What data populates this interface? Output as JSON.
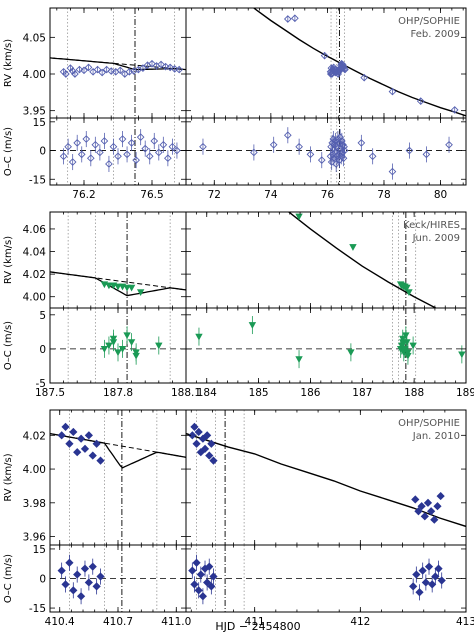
{
  "chart_data": {
    "type": "scatter",
    "xlabel": "HJD − 2454800",
    "rv_label": "RV (km/s)",
    "oc_label": "O–C (m/s)",
    "panels": [
      {
        "id": "p1",
        "instrument": "OHP/SOPHIE",
        "date": "Feb. 2009",
        "color": "#5560b0",
        "marker": "open-diamond",
        "left": {
          "xlim": [
            76.05,
            76.65
          ],
          "xticks": [
            "76.2",
            "76.5"
          ]
        },
        "right": {
          "xlim": [
            71.0,
            80.9
          ],
          "xticks": [
            "72",
            "74",
            "76",
            "78",
            "80"
          ]
        },
        "rv_ylim": [
          3.94,
          4.09
        ],
        "rv_yticks": [
          "3.95",
          "4.00",
          "4.05"
        ],
        "oc_ylim": [
          -18,
          17
        ],
        "oc_yticks": [
          "15",
          "0",
          "-15"
        ],
        "rv_points": [
          [
            76.11,
            4.003
          ],
          [
            76.12,
            4.0
          ],
          [
            76.14,
            4.008
          ],
          [
            76.15,
            4.004
          ],
          [
            76.16,
            4.0
          ],
          [
            76.18,
            4.006
          ],
          [
            76.2,
            4.005
          ],
          [
            76.22,
            4.009
          ],
          [
            76.24,
            4.003
          ],
          [
            76.26,
            4.006
          ],
          [
            76.28,
            4.002
          ],
          [
            76.3,
            4.006
          ],
          [
            76.32,
            4.004
          ],
          [
            76.34,
            4.003
          ],
          [
            76.36,
            4.005
          ],
          [
            76.38,
            4.0
          ],
          [
            76.4,
            4.003
          ],
          [
            76.42,
            4.004
          ],
          [
            76.44,
            4.006
          ],
          [
            76.46,
            4.008
          ],
          [
            76.48,
            4.012
          ],
          [
            76.5,
            4.014
          ],
          [
            76.52,
            4.011
          ],
          [
            76.54,
            4.013
          ],
          [
            76.56,
            4.01
          ],
          [
            76.58,
            4.009
          ],
          [
            76.6,
            4.007
          ],
          [
            76.62,
            4.006
          ],
          [
            74.6,
            4.075
          ],
          [
            74.85,
            4.076
          ],
          [
            75.9,
            4.025
          ],
          [
            77.3,
            3.995
          ],
          [
            78.3,
            3.976
          ],
          [
            79.3,
            3.963
          ],
          [
            80.5,
            3.951
          ]
        ],
        "oc_points": [
          [
            76.11,
            -3
          ],
          [
            76.13,
            2
          ],
          [
            76.15,
            -6
          ],
          [
            76.17,
            4
          ],
          [
            76.19,
            -2
          ],
          [
            76.21,
            6
          ],
          [
            76.23,
            -4
          ],
          [
            76.25,
            3
          ],
          [
            76.27,
            -1
          ],
          [
            76.29,
            5
          ],
          [
            76.31,
            -7
          ],
          [
            76.33,
            2
          ],
          [
            76.35,
            -3
          ],
          [
            76.37,
            6
          ],
          [
            76.39,
            -2
          ],
          [
            76.41,
            4
          ],
          [
            76.43,
            -5
          ],
          [
            76.45,
            7
          ],
          [
            76.47,
            1
          ],
          [
            76.49,
            -3
          ],
          [
            76.51,
            5
          ],
          [
            76.53,
            -1
          ],
          [
            76.55,
            3
          ],
          [
            76.57,
            -4
          ],
          [
            76.59,
            2
          ],
          [
            76.61,
            0
          ],
          [
            71.6,
            2
          ],
          [
            73.4,
            -1
          ],
          [
            74.1,
            3
          ],
          [
            74.6,
            8
          ],
          [
            75.0,
            2
          ],
          [
            75.4,
            -2
          ],
          [
            75.8,
            -5
          ],
          [
            77.2,
            4
          ],
          [
            77.6,
            -3
          ],
          [
            78.3,
            -11
          ],
          [
            78.9,
            0
          ],
          [
            79.5,
            -2
          ],
          [
            80.3,
            3
          ]
        ],
        "model_x": [
          71,
          71.5,
          72,
          72.5,
          73,
          73.5,
          74,
          74.5,
          75,
          75.5,
          76,
          76.2,
          76.4,
          76.6,
          77,
          77.5,
          78,
          78.5,
          79,
          79.5,
          80,
          80.5,
          80.9
        ],
        "model_y": [
          4.171,
          4.153,
          4.135,
          4.118,
          4.102,
          4.087,
          4.073,
          4.06,
          4.047,
          4.035,
          4.024,
          4.02,
          4.016,
          4.012,
          4.004,
          3.994,
          3.985,
          3.976,
          3.968,
          3.961,
          3.954,
          3.948,
          3.943
        ],
        "transit_x": [
          76.128,
          76.33,
          76.425,
          76.6
        ],
        "solid_x": [
          76.425
        ],
        "left_zoom": {
          "x0": 76.05,
          "x1": 76.65,
          "y0": 4.022,
          "y1": 4.006,
          "wiggle": 0.006
        }
      },
      {
        "id": "p2",
        "instrument": "Keck/HIRES",
        "date": "Jun. 2009",
        "color": "#1a9a55",
        "marker": "filled-triangle-down",
        "left": {
          "xlim": [
            187.5,
            188.1
          ],
          "xticks": [
            "187.5",
            "187.8",
            "188.1"
          ]
        },
        "right": {
          "xlim": [
            183.6,
            189.0
          ],
          "xticks": [
            "184",
            "185",
            "186",
            "187",
            "188",
            "189"
          ]
        },
        "rv_ylim": [
          3.99,
          4.075
        ],
        "rv_yticks": [
          "4.00",
          "4.02",
          "4.04",
          "4.06"
        ],
        "oc_ylim": [
          -5,
          6
        ],
        "oc_yticks": [
          "5",
          "0",
          "-5"
        ],
        "rv_points": [
          [
            187.74,
            4.011
          ],
          [
            187.76,
            4.01
          ],
          [
            187.78,
            4.01
          ],
          [
            187.8,
            4.009
          ],
          [
            187.82,
            4.009
          ],
          [
            187.84,
            4.008
          ],
          [
            187.86,
            4.008
          ],
          [
            185.78,
            4.071
          ],
          [
            186.82,
            4.044
          ],
          [
            187.78,
            4.01
          ],
          [
            187.9,
            4.004
          ],
          [
            188.92,
            3.986
          ]
        ],
        "oc_points": [
          [
            187.74,
            0
          ],
          [
            187.76,
            0.5
          ],
          [
            187.78,
            1
          ],
          [
            187.8,
            -0.5
          ],
          [
            187.82,
            0
          ],
          [
            187.84,
            2
          ],
          [
            187.86,
            1
          ],
          [
            187.88,
            -1
          ],
          [
            183.85,
            1.8
          ],
          [
            184.88,
            3.5
          ],
          [
            185.78,
            -1.5
          ],
          [
            186.78,
            -0.5
          ],
          [
            187.78,
            1.5
          ],
          [
            187.88,
            -0.5
          ],
          [
            187.98,
            0.5
          ],
          [
            188.92,
            -0.8
          ]
        ],
        "model_x": [
          183.6,
          184,
          184.5,
          185,
          185.5,
          186,
          186.5,
          187,
          187.5,
          188,
          188.5,
          189
        ],
        "model_y": [
          4.148,
          4.133,
          4.114,
          4.096,
          4.078,
          4.06,
          4.043,
          4.027,
          4.013,
          4.0,
          3.988,
          3.976
        ],
        "transit_x": [
          187.58,
          187.7,
          187.84,
          188.03
        ],
        "solid_x": [
          187.84
        ],
        "left_zoom": {
          "x0": 187.5,
          "x1": 188.1,
          "y0": 4.022,
          "y1": 4.006,
          "wiggle": 0.012
        }
      },
      {
        "id": "p3",
        "instrument": "OHP/SOPHIE",
        "date": "Jan. 2010",
        "color": "#2a3592",
        "marker": "filled-diamond",
        "left": {
          "xlim": [
            410.35,
            411.05
          ],
          "xticks": [
            "410.4",
            "410.7",
            "411.0"
          ]
        },
        "right": {
          "xlim": [
            410.35,
            413.0
          ],
          "xticks": [
            "411",
            "412",
            "413"
          ]
        },
        "rv_ylim": [
          3.955,
          4.035
        ],
        "rv_yticks": [
          "3.96",
          "3.98",
          "4.00",
          "4.02"
        ],
        "oc_ylim": [
          -17,
          17
        ],
        "oc_yticks": [
          "15",
          "0",
          "-15"
        ],
        "rv_points": [
          [
            410.41,
            4.02
          ],
          [
            410.43,
            4.025
          ],
          [
            410.45,
            4.015
          ],
          [
            410.47,
            4.022
          ],
          [
            410.49,
            4.01
          ],
          [
            410.51,
            4.018
          ],
          [
            410.53,
            4.012
          ],
          [
            410.55,
            4.02
          ],
          [
            410.57,
            4.008
          ],
          [
            410.59,
            4.015
          ],
          [
            410.61,
            4.005
          ],
          [
            412.52,
            3.982
          ],
          [
            412.55,
            3.975
          ],
          [
            412.58,
            3.978
          ],
          [
            412.61,
            3.972
          ],
          [
            412.64,
            3.98
          ],
          [
            412.67,
            3.975
          ],
          [
            412.7,
            3.97
          ],
          [
            412.73,
            3.978
          ],
          [
            412.76,
            3.984
          ]
        ],
        "oc_points": [
          [
            410.41,
            4
          ],
          [
            410.43,
            -3
          ],
          [
            410.45,
            8
          ],
          [
            410.47,
            -6
          ],
          [
            410.49,
            2
          ],
          [
            410.51,
            -9
          ],
          [
            410.53,
            5
          ],
          [
            410.55,
            -2
          ],
          [
            410.57,
            6
          ],
          [
            410.59,
            -4
          ],
          [
            410.61,
            1
          ],
          [
            412.5,
            -4
          ],
          [
            412.53,
            2
          ],
          [
            412.56,
            -7
          ],
          [
            412.59,
            4
          ],
          [
            412.62,
            -2
          ],
          [
            412.65,
            6
          ],
          [
            412.68,
            -3
          ],
          [
            412.71,
            1
          ],
          [
            412.74,
            5
          ],
          [
            412.77,
            -1
          ]
        ],
        "model_x": [
          410.35,
          410.5,
          410.75,
          411,
          411.25,
          411.5,
          411.75,
          412,
          412.25,
          412.5,
          412.75,
          413
        ],
        "model_y": [
          4.021,
          4.018,
          4.013,
          4.009,
          4.003,
          3.998,
          3.993,
          3.987,
          3.982,
          3.977,
          3.971,
          3.966
        ],
        "transit_x": [
          410.45,
          410.63,
          410.72,
          410.9
        ],
        "solid_x": [
          410.72
        ],
        "left_zoom": {
          "x0": 410.35,
          "x1": 411.05,
          "y0": 4.021,
          "y1": 4.007,
          "wiggle": 0.013
        }
      }
    ]
  }
}
